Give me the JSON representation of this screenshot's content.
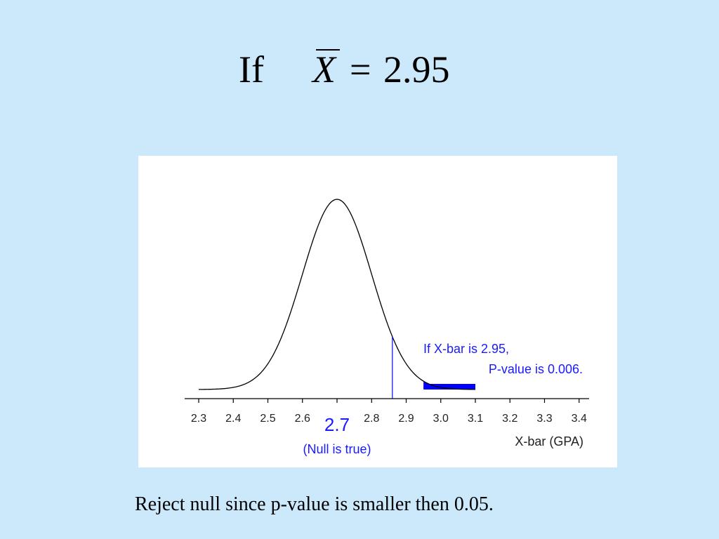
{
  "heading": {
    "word": "If",
    "variable": "X",
    "equals": "=",
    "value": "2.95"
  },
  "chart_data": {
    "type": "line",
    "description_curve": "normal density",
    "mean": 2.7,
    "sd": 0.1,
    "x_ticks": [
      "2.3",
      "2.4",
      "2.5",
      "2.6",
      "2.7",
      "2.8",
      "2.9",
      "3.0",
      "3.1",
      "3.2",
      "3.3",
      "3.4"
    ],
    "xlim": [
      2.3,
      3.4
    ],
    "xlabel": "X-bar (GPA)",
    "center_label": "2.7",
    "center_sublabel": "(Null is true)",
    "critical_line_x": 2.86,
    "shaded_region": [
      2.95,
      3.1
    ],
    "annotation_line1": "If X-bar is 2.95,",
    "annotation_line2": "P-value is 0.006.",
    "grid": false,
    "colors": {
      "curve": "#000000",
      "accent": "#1a1aff",
      "shade": "#0000ff",
      "axis": "#000000"
    }
  },
  "caption": "Reject null since p-value is smaller then 0.05."
}
